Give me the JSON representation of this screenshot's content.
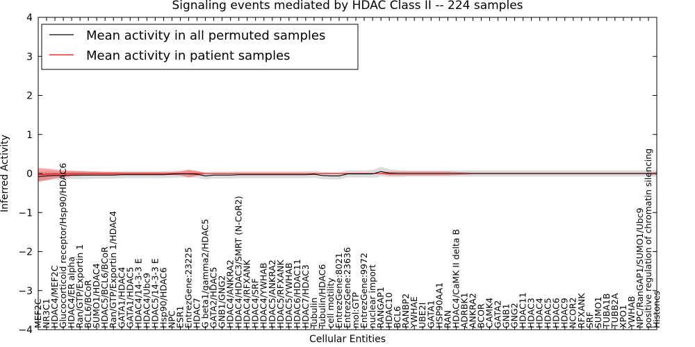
{
  "chart_data": {
    "type": "line",
    "title": "Signaling events mediated by HDAC Class II -- 224 samples",
    "xlabel": "Cellular Entities",
    "ylabel": "Inferred Activity",
    "ylim": [
      -4,
      4
    ],
    "yticks": [
      "-4",
      "-3",
      "-2",
      "-1",
      "0",
      "1",
      "2",
      "3",
      "4"
    ],
    "legend_position": "top-left",
    "categories": [
      "MEF2C",
      "NR3C1",
      "HDAC4/MEF2C",
      "Glucocorticoid receptor/Hsp90/HDAC6",
      "HDAC4/ER alpha",
      "Ran/GTP/Exportin 1",
      "BCL6/BCoR",
      "SUMO1/HDAC4",
      "HDAC5/BCL6/BCoR",
      "Ran/GTP/Exportin 1/HDAC4",
      "GATA1/HDAC4",
      "GATA1/HDAC5",
      "HDAC4/14-3-3 E",
      "HDAC4/Ubc9",
      "HDAC5/14-3-3 E",
      "Hsp90/HDAC6",
      "NPC",
      "ESR1",
      "EntrezGene:23225",
      "HDAC7",
      "G beta1/gamma2/HDAC5",
      "GATA2/HDAC5",
      "GNB1/GNG2",
      "HDAC4/ANKRA2",
      "HDAC4/HDAC3/SMRT (N-CoR2)",
      "HDAC4/RFXANK",
      "HDAC4/SRF",
      "HDAC4/YWHAB",
      "HDAC5/ANKRA2",
      "HDAC5/RFXANK",
      "HDAC5/YWHAB",
      "HDAC6/HDAC11",
      "HDAC7/HDAC3",
      "Tubulin",
      "Tubulin/HDAC6",
      "cell motility",
      "EntrezGene:8021",
      "EntrezGene:23636",
      "mol:GTP",
      "EntrezGene:9972",
      "nuclear import",
      "RANGAP1",
      "HDAC10",
      "BCL6",
      "RANBP2",
      "YWHAE",
      "UBE2I",
      "GATA1",
      "HSP90AA1",
      "RAN",
      "HDAC4/CaMK II delta B",
      "ADRBK1",
      "ANKRA2",
      "BCOR",
      "CAMK4",
      "GATA2",
      "GNB1",
      "GNG2",
      "HDAC11",
      "HDAC3",
      "HDAC4",
      "HDAC5",
      "HDAC6",
      "HDAC9",
      "NCOR2",
      "RFXANK",
      "SRF",
      "SUMO1",
      "TUBA1B",
      "TUBB2A",
      "XPO1",
      "YWHAB",
      "NPC/RanGAP1/SUMO1/Ubc9",
      "positive regulation of chromatin silencing",
      "Histones"
    ],
    "series": [
      {
        "name": "Mean activity in all permuted samples",
        "color": "#000000",
        "values": [
          -0.08,
          -0.06,
          -0.05,
          -0.05,
          -0.04,
          -0.04,
          -0.04,
          -0.04,
          -0.04,
          -0.04,
          -0.03,
          -0.03,
          -0.03,
          -0.03,
          -0.03,
          -0.03,
          -0.02,
          -0.01,
          -0.01,
          -0.02,
          -0.06,
          -0.04,
          -0.04,
          -0.04,
          -0.03,
          -0.03,
          -0.03,
          -0.03,
          -0.03,
          -0.03,
          -0.03,
          -0.03,
          -0.03,
          -0.02,
          -0.05,
          -0.06,
          -0.06,
          -0.01,
          -0.01,
          -0.01,
          -0.01,
          0.05,
          0.01,
          0.0,
          0.0,
          0.0,
          0.0,
          0.0,
          0.0,
          0.0,
          0.0,
          0.0,
          0.0,
          0.0,
          0.0,
          0.0,
          0.0,
          0.0,
          0.0,
          0.0,
          0.0,
          0.0,
          0.0,
          0.0,
          0.0,
          0.0,
          0.0,
          0.0,
          0.0,
          0.0,
          0.0,
          0.0,
          0.0,
          0.0,
          0.0
        ],
        "band": [
          0.14,
          0.12,
          0.11,
          0.1,
          0.1,
          0.1,
          0.1,
          0.09,
          0.09,
          0.09,
          0.09,
          0.09,
          0.09,
          0.09,
          0.09,
          0.09,
          0.09,
          0.09,
          0.09,
          0.09,
          0.09,
          0.09,
          0.09,
          0.09,
          0.09,
          0.09,
          0.09,
          0.09,
          0.09,
          0.09,
          0.09,
          0.09,
          0.09,
          0.09,
          0.09,
          0.09,
          0.09,
          0.09,
          0.09,
          0.09,
          0.1,
          0.12,
          0.1,
          0.09,
          0.08,
          0.08,
          0.08,
          0.08,
          0.08,
          0.08,
          0.08,
          0.08,
          0.08,
          0.08,
          0.08,
          0.08,
          0.08,
          0.08,
          0.08,
          0.08,
          0.08,
          0.08,
          0.08,
          0.08,
          0.08,
          0.08,
          0.08,
          0.08,
          0.08,
          0.08,
          0.08,
          0.08,
          0.08,
          0.08,
          0.08
        ]
      },
      {
        "name": "Mean activity in patient samples",
        "color": "#ff0000",
        "values": [
          -0.03,
          -0.02,
          -0.01,
          -0.01,
          0.0,
          0.0,
          0.0,
          0.0,
          0.0,
          0.0,
          0.0,
          0.0,
          0.0,
          0.0,
          0.0,
          0.0,
          0.0,
          0.0,
          0.0,
          0.0,
          0.0,
          0.0,
          0.0,
          0.0,
          0.0,
          0.0,
          0.0,
          0.0,
          0.0,
          0.0,
          0.0,
          0.0,
          0.0,
          0.0,
          0.0,
          0.0,
          0.0,
          0.0,
          0.0,
          0.0,
          0.0,
          0.0,
          0.0,
          0.0,
          0.0,
          0.0,
          0.0,
          0.0,
          0.0,
          0.0,
          0.0,
          0.0,
          0.0,
          0.0,
          0.0,
          0.0,
          0.0,
          0.0,
          0.0,
          0.0,
          0.0,
          0.0,
          0.0,
          0.0,
          0.0,
          0.0,
          0.0,
          0.0,
          0.0,
          0.0,
          0.0,
          0.0,
          0.0,
          0.0,
          0.0
        ],
        "band": [
          0.17,
          0.15,
          0.11,
          0.09,
          0.07,
          0.06,
          0.05,
          0.05,
          0.04,
          0.04,
          0.03,
          0.03,
          0.03,
          0.03,
          0.03,
          0.03,
          0.03,
          0.05,
          0.1,
          0.06,
          0.01,
          0.01,
          0.01,
          0.01,
          0.01,
          0.01,
          0.01,
          0.01,
          0.01,
          0.01,
          0.01,
          0.01,
          0.01,
          0.01,
          0.01,
          0.01,
          0.01,
          0.01,
          0.01,
          0.01,
          0.01,
          0.01,
          0.05,
          0.05,
          0.05,
          0.05,
          0.05,
          0.05,
          0.05,
          0.05,
          0.04,
          0.03,
          0.02,
          0.02,
          0.02,
          0.02,
          0.02,
          0.02,
          0.02,
          0.02,
          0.02,
          0.02,
          0.02,
          0.02,
          0.02,
          0.02,
          0.02,
          0.02,
          0.02,
          0.02,
          0.02,
          0.02,
          0.02,
          0.02,
          0.04
        ]
      }
    ]
  }
}
